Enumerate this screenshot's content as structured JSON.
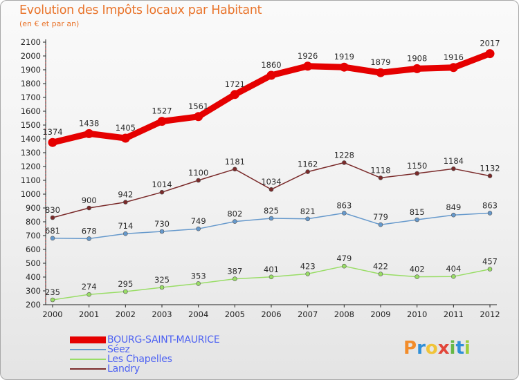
{
  "title": "Evolution des Impôts locaux par Habitant",
  "subtitle": "(en € et par an)",
  "brand": {
    "letters": [
      "P",
      "r",
      "o",
      "x",
      "i",
      "t",
      "i"
    ],
    "colors": [
      "#f28c2a",
      "#2f8fd8",
      "#f0c43a",
      "#e2463a",
      "#66b846",
      "#2f8fd8",
      "#9ecf3b"
    ]
  },
  "colors": {
    "title": "#e9742b",
    "legend_text": "#4e62f2",
    "axis": "#222222"
  },
  "chart_data": {
    "type": "line",
    "title": "Evolution des Impôts locaux par Habitant",
    "subtitle": "(en € et par an)",
    "xlabel": "",
    "ylabel": "",
    "x": [
      2000,
      2001,
      2002,
      2003,
      2004,
      2005,
      2006,
      2007,
      2008,
      2009,
      2010,
      2011,
      2012
    ],
    "ylim": [
      200,
      2100
    ],
    "yticks": [
      200,
      300,
      400,
      500,
      600,
      700,
      800,
      900,
      1000,
      1100,
      1200,
      1300,
      1400,
      1500,
      1600,
      1700,
      1800,
      1900,
      2000,
      2100
    ],
    "grid": false,
    "legend_position": "bottom-left",
    "series": [
      {
        "name": "BOURG-SAINT-MAURICE",
        "color": "#e50000",
        "emphasis": "bold",
        "values": [
          1374,
          1438,
          1405,
          1527,
          1561,
          1721,
          1860,
          1926,
          1919,
          1879,
          1908,
          1916,
          2017
        ]
      },
      {
        "name": "Séez",
        "color": "#6699cc",
        "emphasis": "normal",
        "values": [
          681,
          678,
          714,
          730,
          749,
          802,
          825,
          821,
          863,
          779,
          815,
          849,
          863
        ]
      },
      {
        "name": "Les Chapelles",
        "color": "#99dd66",
        "emphasis": "normal",
        "values": [
          235,
          274,
          295,
          325,
          353,
          387,
          401,
          423,
          479,
          422,
          402,
          404,
          457
        ]
      },
      {
        "name": "Landry",
        "color": "#7a2a2a",
        "emphasis": "normal",
        "values": [
          830,
          900,
          942,
          1014,
          1100,
          1181,
          1034,
          1162,
          1228,
          1118,
          1150,
          1184,
          1132
        ]
      }
    ]
  }
}
